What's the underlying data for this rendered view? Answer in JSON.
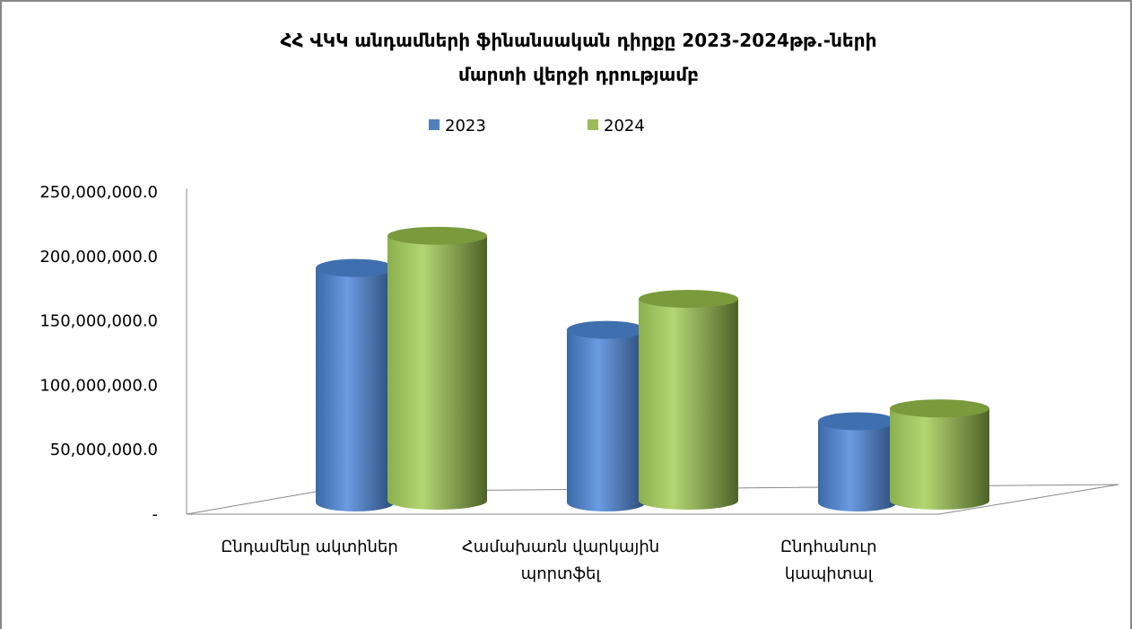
{
  "chart_data": {
    "type": "bar",
    "title": [
      "ՀՀ ՎԿԿ անդամների ֆինանսական դիրքը 2023-2024թթ.-ների",
      "մարտի վերջի դրությամբ"
    ],
    "categories": [
      "Ընդամենը ակտիներ",
      "Համախառն վարկային պորտֆել",
      "Ընդհանուր կապիտալ"
    ],
    "series": [
      {
        "name": "2023",
        "color": "#4f81bd",
        "values": [
          182000000,
          134000000,
          63000000
        ]
      },
      {
        "name": "2024",
        "color": "#9bbb59",
        "values": [
          207000000,
          158000000,
          73000000
        ]
      }
    ],
    "ylim": [
      0,
      250000000
    ],
    "yticks": [
      {
        "value": 0,
        "label": "-"
      },
      {
        "value": 50000000,
        "label": "50,000,000.0"
      },
      {
        "value": 100000000,
        "label": "100,000,000.0"
      },
      {
        "value": 150000000,
        "label": "150,000,000.0"
      },
      {
        "value": 200000000,
        "label": "200,000,000.0"
      },
      {
        "value": 250000000,
        "label": "250,000,000.0"
      }
    ],
    "legend": "top"
  }
}
